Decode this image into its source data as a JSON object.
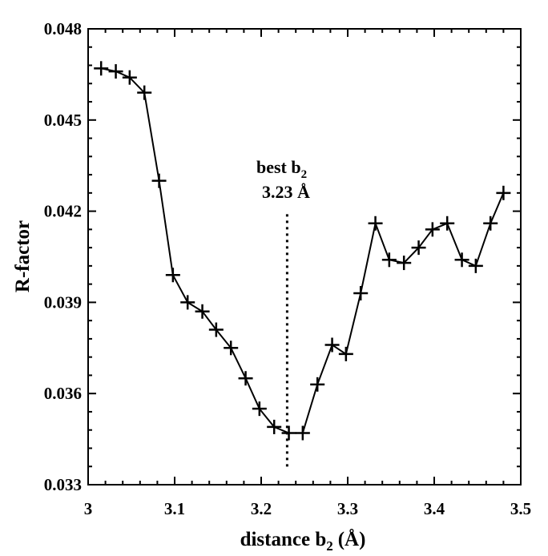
{
  "chart_data": {
    "type": "line",
    "title": "",
    "xlabel": "distance b",
    "xlabel_sub": "2",
    "xlabel_unit": "(Å)",
    "ylabel": "R-factor",
    "xlim": [
      3.0,
      3.5
    ],
    "ylim": [
      0.033,
      0.048
    ],
    "xticks": [
      3.0,
      3.1,
      3.2,
      3.3,
      3.4,
      3.5
    ],
    "xtick_labels": [
      "3",
      "3.1",
      "3.2",
      "3.3",
      "3.4",
      "3.5"
    ],
    "yticks": [
      0.033,
      0.036,
      0.039,
      0.042,
      0.045,
      0.048
    ],
    "ytick_labels": [
      "0.033",
      "0.036",
      "0.039",
      "0.042",
      "0.045",
      "0.048"
    ],
    "grid": false,
    "marker": "plus",
    "series": [
      {
        "name": "R-factor",
        "x": [
          3.015,
          3.032,
          3.048,
          3.065,
          3.082,
          3.098,
          3.115,
          3.132,
          3.148,
          3.165,
          3.182,
          3.198,
          3.215,
          3.232,
          3.248,
          3.265,
          3.282,
          3.298,
          3.315,
          3.332,
          3.348,
          3.365,
          3.382,
          3.398,
          3.415,
          3.432,
          3.448,
          3.465,
          3.48
        ],
        "values": [
          0.0467,
          0.0466,
          0.0464,
          0.0459,
          0.043,
          0.0399,
          0.039,
          0.0387,
          0.0381,
          0.0375,
          0.0365,
          0.0355,
          0.0349,
          0.0347,
          0.0347,
          0.0363,
          0.0376,
          0.0373,
          0.0393,
          0.0416,
          0.0404,
          0.0403,
          0.0408,
          0.0414,
          0.0416,
          0.0404,
          0.0402,
          0.0416,
          0.0426
        ]
      }
    ],
    "annotation": {
      "line1": "best b",
      "line1_sub": "2",
      "line2": "3.23 Å",
      "x": 3.23,
      "y_top": 0.0419,
      "y_bottom": 0.0335
    }
  }
}
